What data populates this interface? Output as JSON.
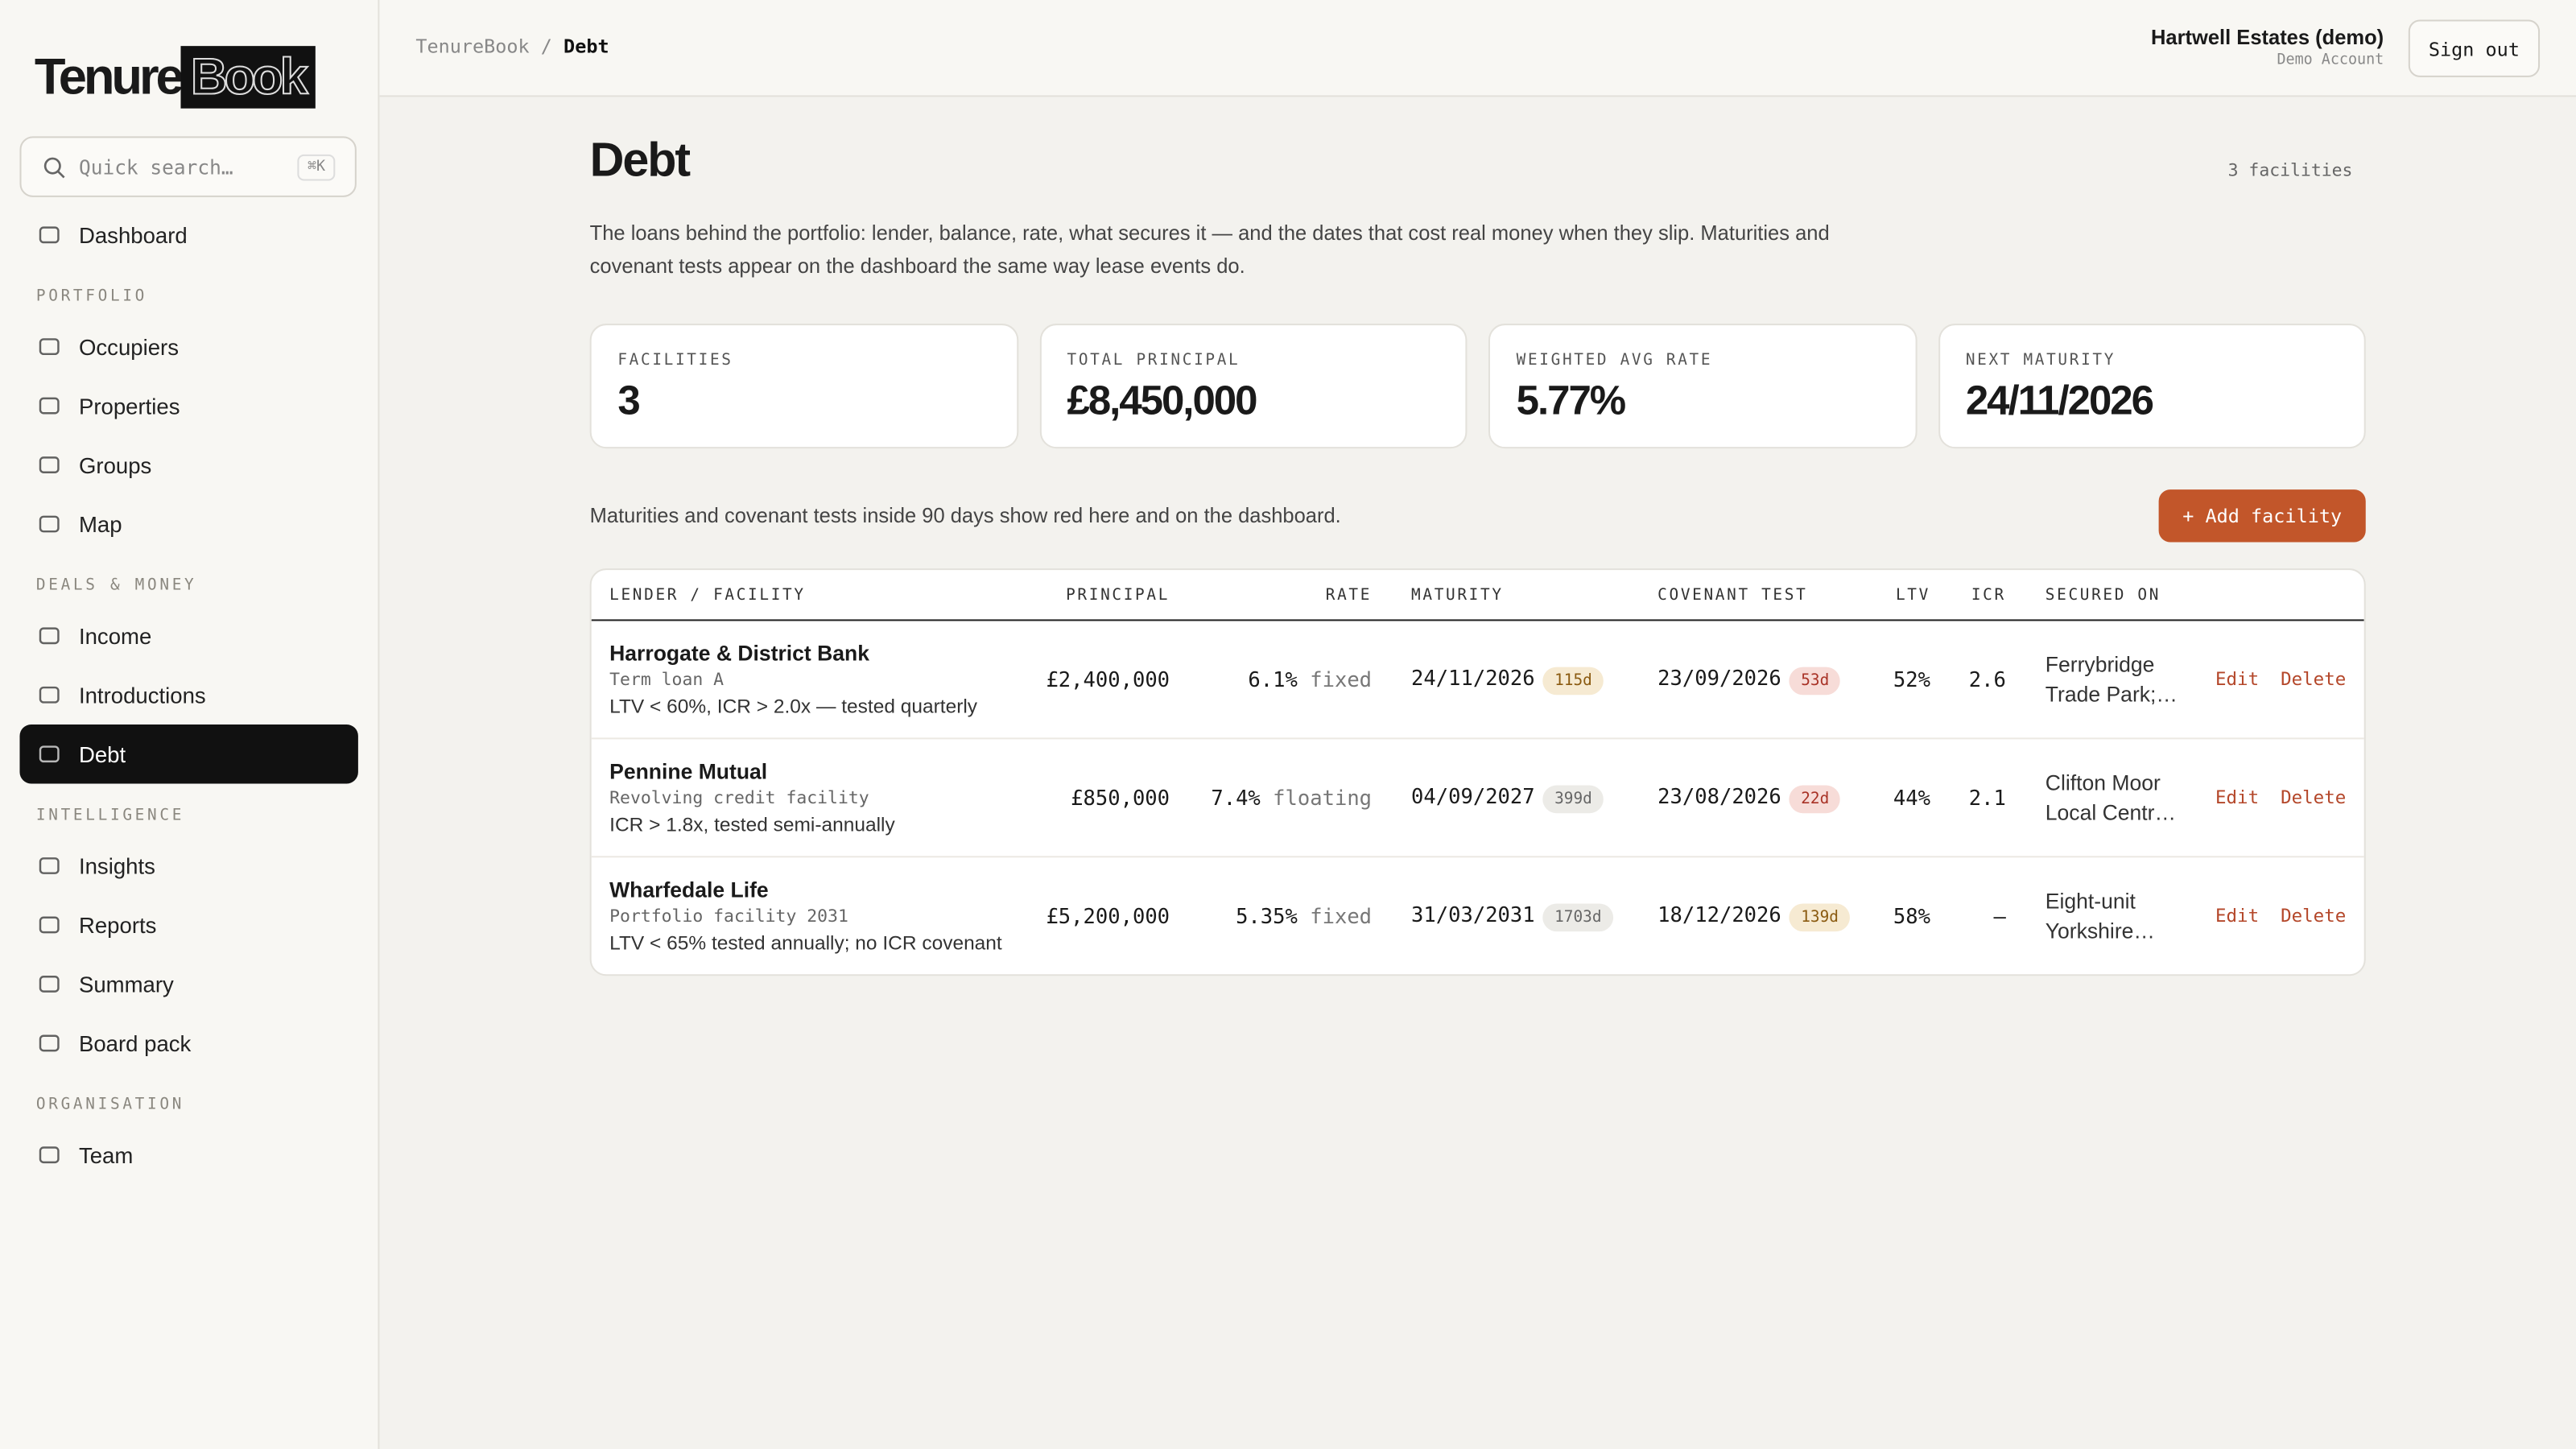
{
  "brand": {
    "name": "Tenure",
    "suffix": "Book"
  },
  "search": {
    "placeholder": "Quick search…",
    "shortcut": "⌘K"
  },
  "nav": [
    {
      "item": "Dashboard"
    },
    {
      "section": "PORTFOLIO"
    },
    {
      "item": "Occupiers"
    },
    {
      "item": "Properties"
    },
    {
      "item": "Groups"
    },
    {
      "item": "Map"
    },
    {
      "section": "DEALS & MONEY"
    },
    {
      "item": "Income"
    },
    {
      "item": "Introductions"
    },
    {
      "item": "Debt",
      "active": true
    },
    {
      "section": "INTELLIGENCE"
    },
    {
      "item": "Insights"
    },
    {
      "item": "Reports"
    },
    {
      "item": "Summary"
    },
    {
      "item": "Board pack"
    },
    {
      "section": "ORGANISATION"
    },
    {
      "item": "Team"
    }
  ],
  "breadcrumb": [
    "TenureBook",
    "Debt"
  ],
  "account": {
    "name": "Hartwell Estates (demo)",
    "role": "Demo Account",
    "sign_out": "Sign out"
  },
  "page": {
    "title": "Debt",
    "count": "3 facilities",
    "description": "The loans behind the portfolio: lender, balance, rate, what secures it — and the dates that cost real money when they slip. Maturities and covenant tests appear on the dashboard the same way lease events do."
  },
  "stats": [
    {
      "label": "FACILITIES",
      "value": "3"
    },
    {
      "label": "TOTAL PRINCIPAL",
      "value": "£8,450,000"
    },
    {
      "label": "WEIGHTED AVG RATE",
      "value": "5.77%"
    },
    {
      "label": "NEXT MATURITY",
      "value": "24/11/2026"
    }
  ],
  "note": "Maturities and covenant tests inside 90 days show red here and on the dashboard.",
  "add_button": "+ Add facility",
  "table": {
    "columns": [
      "LENDER / FACILITY",
      "PRINCIPAL",
      "RATE",
      "MATURITY",
      "COVENANT TEST",
      "LTV",
      "ICR",
      "SECURED ON"
    ],
    "rows": [
      {
        "lender": "Harrogate & District Bank",
        "facility": "Term loan A",
        "covenant": "LTV < 60%, ICR > 2.0x — tested quarterly",
        "principal": "£2,400,000",
        "rate": "6.1%",
        "rate_type": "fixed",
        "maturity": "24/11/2026",
        "maturity_days": "115d",
        "maturity_tone": "amber",
        "test": "23/09/2026",
        "test_days": "53d",
        "test_tone": "red",
        "ltv": "52%",
        "icr": "2.6",
        "secured": "Ferrybridge Trade Park;…",
        "edit": "Edit",
        "delete": "Delete"
      },
      {
        "lender": "Pennine Mutual",
        "facility": "Revolving credit facility",
        "covenant": "ICR > 1.8x, tested semi-annually",
        "principal": "£850,000",
        "rate": "7.4%",
        "rate_type": "floating",
        "maturity": "04/09/2027",
        "maturity_days": "399d",
        "maturity_tone": "gray",
        "test": "23/08/2026",
        "test_days": "22d",
        "test_tone": "red",
        "ltv": "44%",
        "icr": "2.1",
        "secured": "Clifton Moor Local Centr…",
        "edit": "Edit",
        "delete": "Delete"
      },
      {
        "lender": "Wharfedale Life",
        "facility": "Portfolio facility 2031",
        "covenant": "LTV < 65% tested annually; no ICR covenant",
        "principal": "£5,200,000",
        "rate": "5.35%",
        "rate_type": "fixed",
        "maturity": "31/03/2031",
        "maturity_days": "1703d",
        "maturity_tone": "gray",
        "test": "18/12/2026",
        "test_days": "139d",
        "test_tone": "amber",
        "ltv": "58%",
        "icr": "—",
        "secured": "Eight-unit Yorkshire…",
        "edit": "Edit",
        "delete": "Delete"
      }
    ]
  }
}
